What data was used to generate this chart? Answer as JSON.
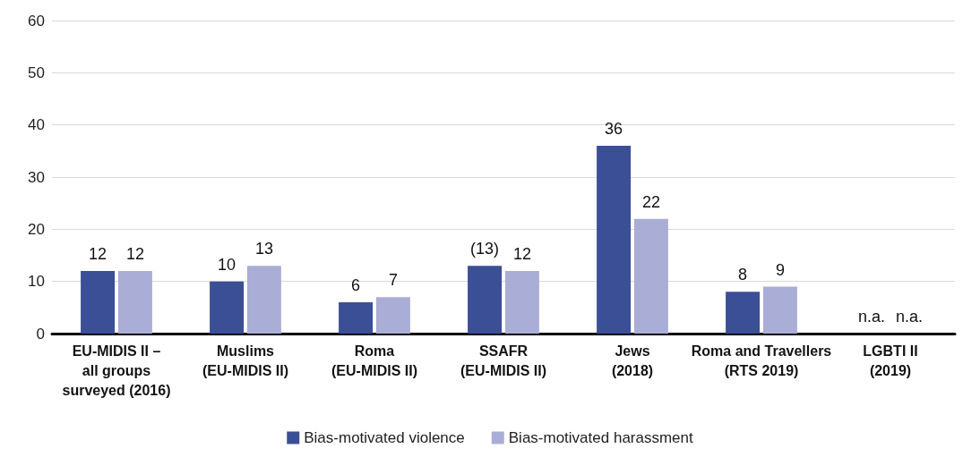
{
  "chart_data": {
    "type": "bar",
    "categories": [
      "EU-MIDIS II –\nall groups\nsurveyed (2016)",
      "Muslims\n(EU-MIDIS II)",
      "Roma\n(EU-MIDIS II)",
      "SSAFR\n(EU-MIDIS II)",
      "Jews\n(2018)",
      "Roma and Travellers\n(RTS 2019)",
      "LGBTI II\n(2019)"
    ],
    "series": [
      {
        "name": "Bias-motivated violence",
        "color": "#3b4f96",
        "values": [
          12,
          10,
          6,
          13,
          36,
          8,
          null
        ],
        "value_labels": [
          "12",
          "10",
          "6",
          "(13)",
          "36",
          "8",
          "n.a."
        ]
      },
      {
        "name": "Bias-motivated harassment",
        "color": "#aaaed6",
        "values": [
          12,
          13,
          7,
          12,
          22,
          9,
          null
        ],
        "value_labels": [
          "12",
          "13",
          "7",
          "12",
          "22",
          "9",
          "n.a."
        ]
      }
    ],
    "ylim": [
      0,
      60
    ],
    "yticks": [
      0,
      10,
      20,
      30,
      40,
      50,
      60
    ],
    "grid": "y",
    "legend": "bottom"
  }
}
